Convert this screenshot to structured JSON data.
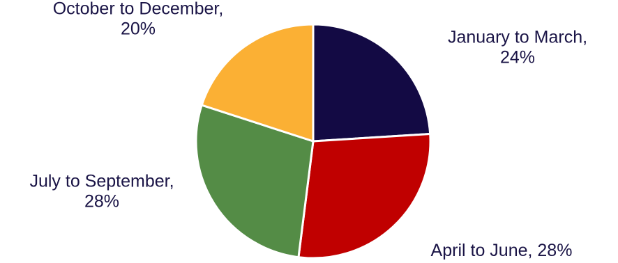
{
  "chart_data": {
    "type": "pie",
    "title": "",
    "legend": "none",
    "start_angle_deg": 0,
    "direction": "clockwise",
    "slices": [
      {
        "category": "January to March",
        "value": 24,
        "color": "#130a44",
        "label_lines": [
          "January to March,",
          "24%"
        ]
      },
      {
        "category": "April to June",
        "value": 28,
        "color": "#c00000",
        "label_lines": [
          "April to June, 28%"
        ]
      },
      {
        "category": "July to September",
        "value": 28,
        "color": "#548c46",
        "label_lines": [
          "July to September,",
          "28%"
        ]
      },
      {
        "category": "October to December",
        "value": 20,
        "color": "#fbb034",
        "label_lines": [
          "October to December,",
          "20%"
        ]
      }
    ]
  }
}
